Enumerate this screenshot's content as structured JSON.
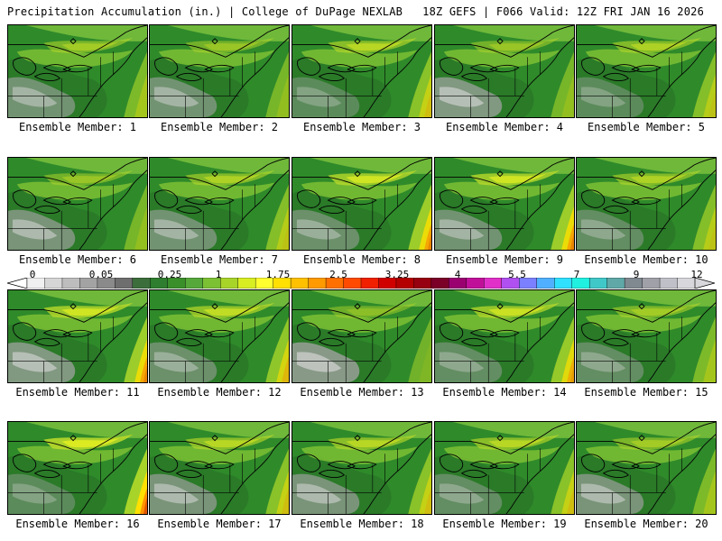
{
  "header": {
    "left_title": "Precipitation Accumulation (in.) | College of DuPage NEXLAB",
    "right_title": "18Z GEFS | F066 Valid: 12Z FRI JAN 16 2026"
  },
  "caption_prefix": "Ensemble Member: ",
  "members": [
    {
      "id": 1,
      "label": "Ensemble Member: 1",
      "heavy": 0.3,
      "dry": 0.5
    },
    {
      "id": 2,
      "label": "Ensemble Member: 2",
      "heavy": 0.2,
      "dry": 0.5
    },
    {
      "id": 3,
      "label": "Ensemble Member: 3",
      "heavy": 0.5,
      "dry": 0.2
    },
    {
      "id": 4,
      "label": "Ensemble Member: 4",
      "heavy": 0.2,
      "dry": 0.7
    },
    {
      "id": 5,
      "label": "Ensemble Member: 5",
      "heavy": 0.4,
      "dry": 0.2
    },
    {
      "id": 6,
      "label": "Ensemble Member: 6",
      "heavy": 0.2,
      "dry": 0.6
    },
    {
      "id": 7,
      "label": "Ensemble Member: 7",
      "heavy": 0.4,
      "dry": 0.5
    },
    {
      "id": 8,
      "label": "Ensemble Member: 8",
      "heavy": 0.8,
      "dry": 0.4
    },
    {
      "id": 9,
      "label": "Ensemble Member: 9",
      "heavy": 0.8,
      "dry": 0.5
    },
    {
      "id": 10,
      "label": "Ensemble Member: 10",
      "heavy": 0.4,
      "dry": 0.3
    },
    {
      "id": 11,
      "label": "Ensemble Member: 11",
      "heavy": 0.8,
      "dry": 0.7
    },
    {
      "id": 12,
      "label": "Ensemble Member: 12",
      "heavy": 0.6,
      "dry": 0.4
    },
    {
      "id": 13,
      "label": "Ensemble Member: 13",
      "heavy": 0.1,
      "dry": 0.8
    },
    {
      "id": 14,
      "label": "Ensemble Member: 14",
      "heavy": 0.7,
      "dry": 0.3
    },
    {
      "id": 15,
      "label": "Ensemble Member: 15",
      "heavy": 0.3,
      "dry": 0.3
    },
    {
      "id": 16,
      "label": "Ensemble Member: 16",
      "heavy": 1.0,
      "dry": 0.2
    },
    {
      "id": 17,
      "label": "Ensemble Member: 17",
      "heavy": 0.5,
      "dry": 0.6
    },
    {
      "id": 18,
      "label": "Ensemble Member: 18",
      "heavy": 0.5,
      "dry": 0.6
    },
    {
      "id": 19,
      "label": "Ensemble Member: 19",
      "heavy": 0.5,
      "dry": 0.3
    },
    {
      "id": 20,
      "label": "Ensemble Member: 20",
      "heavy": 0.3,
      "dry": 0.6
    }
  ],
  "colorbar": {
    "labels": [
      "0",
      "0.05",
      "0.25",
      "1",
      "1.75",
      "2.5",
      "3.25",
      "4",
      "5.5",
      "7",
      "9",
      "12"
    ],
    "colors": [
      "#f0f0f0",
      "#d6d6d6",
      "#bdbdbd",
      "#a3a3a3",
      "#8a8a8a",
      "#6e6e6e",
      "#3c6e3c",
      "#2f7d2f",
      "#3a8f2a",
      "#56a83a",
      "#7cc034",
      "#a8d42a",
      "#d8ee22",
      "#ffff30",
      "#ffe000",
      "#ffc000",
      "#ff9a00",
      "#ff7000",
      "#ff4a00",
      "#f02000",
      "#d00000",
      "#b40000",
      "#960010",
      "#7a0028",
      "#9a0070",
      "#c0109a",
      "#e030c8",
      "#b050f0",
      "#7a80ff",
      "#50b0ff",
      "#30e0ff",
      "#20f0e0",
      "#40c8c8",
      "#60a8a8",
      "#808890",
      "#a0a0a8",
      "#c0c0c8",
      "#d8d8dc"
    ]
  }
}
